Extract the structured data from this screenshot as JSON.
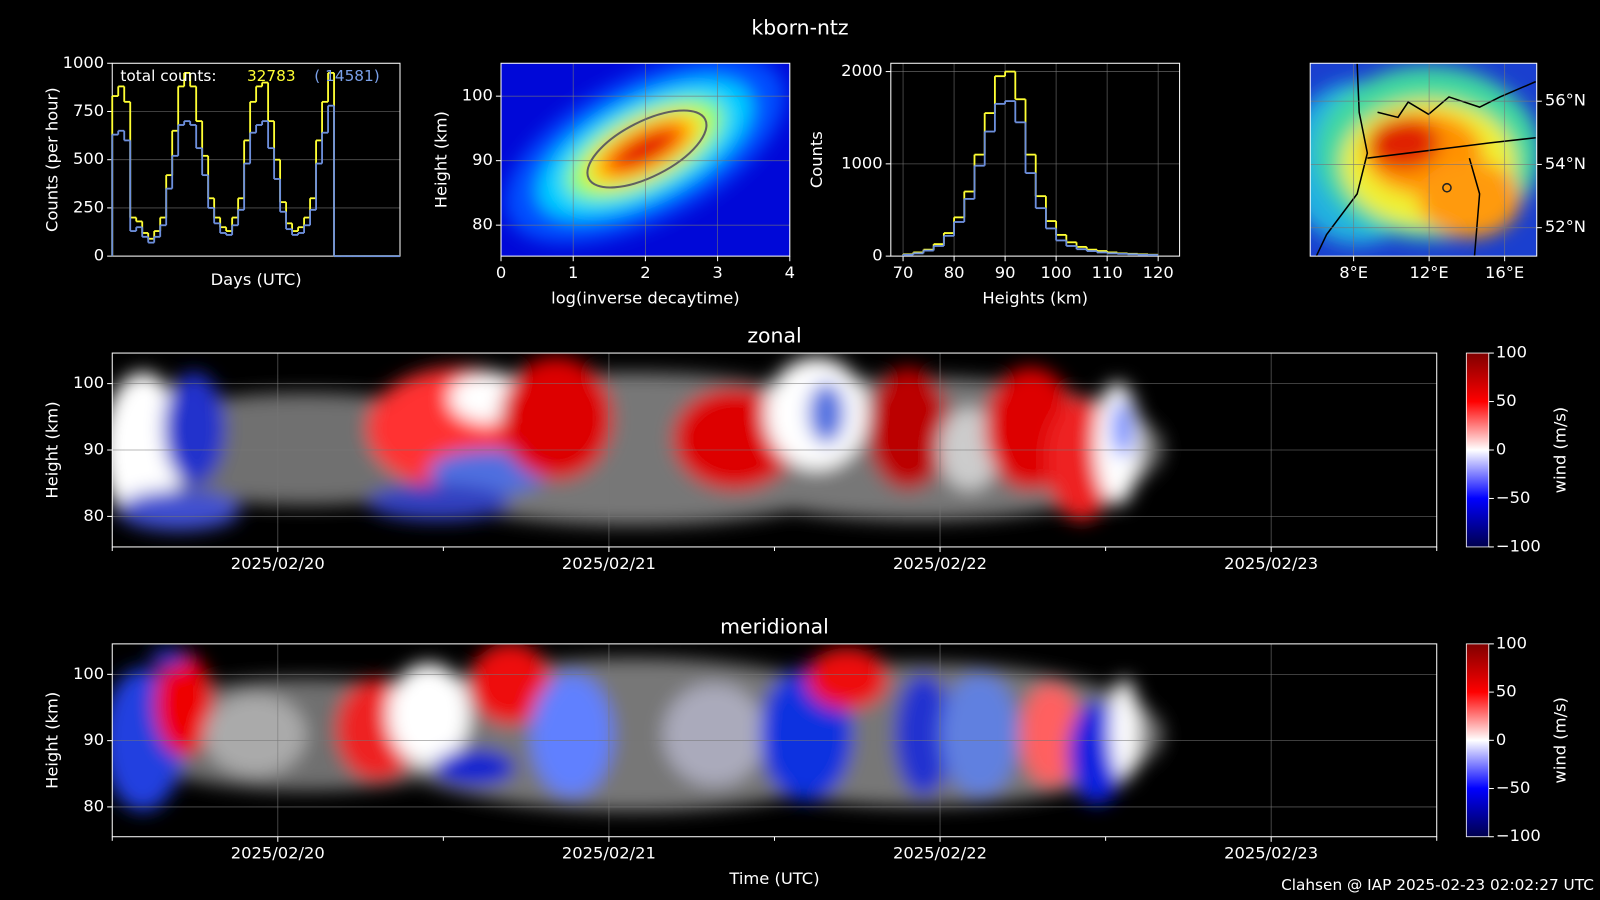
{
  "title": "kborn-ntz",
  "footer": "Clahsen @ IAP 2025-02-23 02:02:27 UTC",
  "chart_data": [
    {
      "type": "step",
      "x_label": "Days (UTC)",
      "y_label": "Counts (per hour)",
      "annotations": [
        {
          "text": "total counts:",
          "color": "#ffffff"
        },
        {
          "text": "32783",
          "color": "#ffff33"
        },
        {
          "text": "( 14581)",
          "color": "#7aa0e8"
        }
      ],
      "x": [
        0,
        2,
        4,
        6,
        8,
        10,
        12,
        14,
        16,
        18,
        20,
        22,
        24,
        26,
        28,
        30,
        32,
        34,
        36,
        38,
        40,
        42,
        44,
        46,
        48,
        50,
        52,
        54,
        56,
        58,
        60,
        62,
        64,
        66,
        68,
        70,
        72,
        74,
        76,
        78,
        80,
        82,
        84,
        86,
        88,
        90,
        92,
        94
      ],
      "xlim": [
        0,
        96
      ],
      "ylim": [
        0,
        1000
      ],
      "yticks": [
        0,
        250,
        500,
        750,
        1000
      ],
      "grid": true,
      "series": [
        {
          "color": "#ffff33",
          "values": [
            830,
            880,
            800,
            200,
            180,
            120,
            90,
            130,
            200,
            420,
            650,
            880,
            950,
            880,
            700,
            520,
            300,
            200,
            150,
            130,
            200,
            300,
            600,
            800,
            880,
            900,
            700,
            500,
            280,
            170,
            130,
            150,
            200,
            300,
            600,
            800,
            950,
            0,
            0,
            0,
            0,
            0,
            0,
            0,
            0,
            0,
            0,
            0
          ]
        },
        {
          "color": "#6d8fdc",
          "values": [
            630,
            650,
            600,
            130,
            150,
            100,
            70,
            100,
            160,
            350,
            520,
            680,
            700,
            680,
            560,
            420,
            250,
            170,
            120,
            110,
            160,
            240,
            480,
            640,
            680,
            700,
            560,
            400,
            230,
            140,
            110,
            120,
            160,
            240,
            480,
            640,
            780,
            0,
            0,
            0,
            0,
            0,
            0,
            0,
            0,
            0,
            0,
            0
          ]
        }
      ]
    },
    {
      "type": "density",
      "x_label": "log(inverse decaytime)",
      "y_label": "Height (km)",
      "xlim": [
        0,
        4
      ],
      "xticks": [
        0,
        1,
        2,
        3,
        4
      ],
      "ylim": [
        75.2,
        105.1
      ],
      "yticks": [
        80,
        90,
        100
      ],
      "grid": true
    },
    {
      "type": "histogram",
      "x_label": "Heights (km)",
      "y_label": "Counts",
      "bins": [
        70,
        72,
        74,
        76,
        78,
        80,
        82,
        84,
        86,
        88,
        90,
        92,
        94,
        96,
        98,
        100,
        102,
        104,
        106,
        108,
        110,
        112,
        114,
        116,
        118,
        120
      ],
      "xlim": [
        67.6,
        124.2
      ],
      "xticks": [
        70,
        80,
        90,
        100,
        110,
        120
      ],
      "ylim": [
        0,
        2090
      ],
      "yticks": [
        0,
        1000,
        2000
      ],
      "grid": true,
      "series": [
        {
          "color": "#ffff33",
          "values": [
            20,
            40,
            70,
            130,
            250,
            420,
            700,
            1100,
            1550,
            1950,
            2000,
            1700,
            1100,
            650,
            380,
            230,
            150,
            100,
            70,
            55,
            40,
            30,
            25,
            20,
            15
          ]
        },
        {
          "color": "#6d8fdc",
          "values": [
            15,
            30,
            60,
            110,
            220,
            370,
            620,
            980,
            1350,
            1650,
            1680,
            1450,
            900,
            520,
            300,
            170,
            110,
            75,
            55,
            40,
            30,
            25,
            20,
            15,
            12
          ]
        }
      ]
    },
    {
      "type": "map",
      "ytick_side": "right",
      "grid": true,
      "xlim": [
        5.7,
        17.7
      ],
      "xticks": [
        {
          "value": 8,
          "label": "8°E"
        },
        {
          "value": 12,
          "label": "12°E"
        },
        {
          "value": 16,
          "label": "16°E"
        }
      ],
      "ylim": [
        51.1,
        57.2
      ],
      "yticks": [
        {
          "value": 52,
          "label": "52°N"
        },
        {
          "value": 54,
          "label": "54°N"
        },
        {
          "value": 56,
          "label": "56°N"
        }
      ]
    },
    {
      "type": "heatmap",
      "title": "zonal",
      "y_label": "Height (km)",
      "colorbar_label": "wind (m/s)",
      "xlim": [
        "2025-02-19T12:00",
        "2025-02-23T12:00"
      ],
      "xticks": [
        {
          "value": "2025-02-20T00:00",
          "label": "2025/02/20"
        },
        {
          "value": "2025-02-21T00:00",
          "label": "2025/02/21"
        },
        {
          "value": "2025-02-22T00:00",
          "label": "2025/02/22"
        },
        {
          "value": "2025-02-23T00:00",
          "label": "2025/02/23"
        }
      ],
      "minor_xticks": [
        "2025-02-19T12:00",
        "2025-02-20T12:00",
        "2025-02-21T12:00",
        "2025-02-22T12:00",
        "2025-02-23T12:00"
      ],
      "ylim": [
        75.4,
        104.6
      ],
      "yticks": [
        80,
        90,
        100
      ],
      "grid": true,
      "clim": [
        -100,
        100
      ],
      "cticks": [
        {
          "value": -100,
          "label": "−100"
        },
        {
          "value": -50,
          "label": "−50"
        },
        0,
        50,
        100
      ]
    },
    {
      "type": "heatmap",
      "title": "meridional",
      "x_label": "Time (UTC)",
      "y_label": "Height (km)",
      "colorbar_label": "wind (m/s)",
      "xlim": [
        "2025-02-19T12:00",
        "2025-02-23T12:00"
      ],
      "xticks": [
        {
          "value": "2025-02-20T00:00",
          "label": "2025/02/20"
        },
        {
          "value": "2025-02-21T00:00",
          "label": "2025/02/21"
        },
        {
          "value": "2025-02-22T00:00",
          "label": "2025/02/22"
        },
        {
          "value": "2025-02-23T00:00",
          "label": "2025/02/23"
        }
      ],
      "minor_xticks": [
        "2025-02-19T12:00",
        "2025-02-20T12:00",
        "2025-02-21T12:00",
        "2025-02-22T12:00",
        "2025-02-23T12:00"
      ],
      "ylim": [
        75.5,
        104.6
      ],
      "yticks": [
        80,
        90,
        100
      ],
      "grid": true,
      "clim": [
        -100,
        100
      ],
      "cticks": [
        {
          "value": -100,
          "label": "−100"
        },
        {
          "value": -50,
          "label": "−50"
        },
        0,
        50,
        100
      ]
    }
  ]
}
